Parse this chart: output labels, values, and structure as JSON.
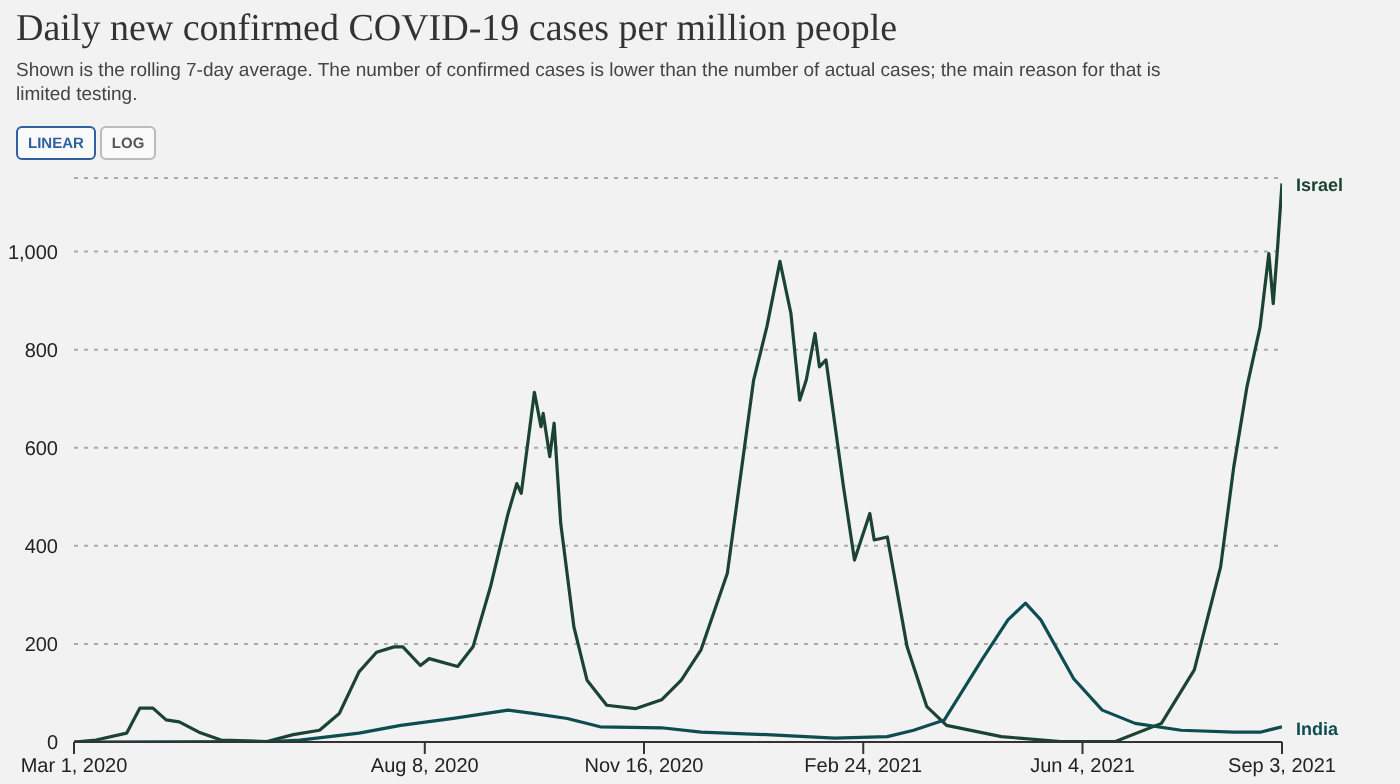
{
  "chart_data": {
    "type": "line",
    "title": "Daily new confirmed COVID-19 cases per million people",
    "subtitle": "Shown is the rolling 7-day average. The number of confirmed cases is lower than the number of actual cases; the main reason for that is limited testing.",
    "annotations": [
      "LINEAR",
      "LOG"
    ],
    "xlim": [
      "2020-03-01",
      "2021-09-03"
    ],
    "xticks": [
      {
        "value": "2020-03-01",
        "label": "Mar 1, 2020"
      },
      {
        "value": "2020-08-08",
        "label": "Aug 8, 2020"
      },
      {
        "value": "2020-11-16",
        "label": "Nov 16, 2020"
      },
      {
        "value": "2021-02-24",
        "label": "Feb 24, 2021"
      },
      {
        "value": "2021-06-04",
        "label": "Jun 4, 2021"
      },
      {
        "value": "2021-09-03",
        "label": "Sep 3, 2021"
      }
    ],
    "ylim": [
      0,
      1150
    ],
    "yticks": [
      0,
      200,
      400,
      600,
      800,
      {
        "value": 1000,
        "label": "1,000"
      }
    ],
    "grid": "y",
    "legend": false,
    "marker": "none",
    "line_style": "solid",
    "series": [
      {
        "name": "Israel",
        "color": "#1b4332",
        "x": [
          "2020-03-01",
          "2020-03-11",
          "2020-03-25",
          "2020-03-31",
          "2020-04-06",
          "2020-04-12",
          "2020-04-18",
          "2020-04-27",
          "2020-05-07",
          "2020-05-28",
          "2020-06-09",
          "2020-06-21",
          "2020-06-30",
          "2020-07-09",
          "2020-07-17",
          "2020-07-25",
          "2020-07-29",
          "2020-08-06",
          "2020-08-10",
          "2020-08-23",
          "2020-08-30",
          "2020-09-07",
          "2020-09-15",
          "2020-09-19",
          "2020-09-21",
          "2020-09-27",
          "2020-09-30",
          "2020-10-01",
          "2020-10-04",
          "2020-10-06",
          "2020-10-09",
          "2020-10-15",
          "2020-10-21",
          "2020-10-30",
          "2020-11-12",
          "2020-11-24",
          "2020-12-03",
          "2020-12-12",
          "2020-12-24",
          "2021-01-05",
          "2021-01-11",
          "2021-01-17",
          "2021-01-22",
          "2021-01-26",
          "2021-01-29",
          "2021-02-02",
          "2021-02-04",
          "2021-02-07",
          "2021-02-15",
          "2021-02-20",
          "2021-02-23",
          "2021-02-27",
          "2021-03-01",
          "2021-03-07",
          "2021-03-16",
          "2021-03-25",
          "2021-04-03",
          "2021-04-28",
          "2021-05-25",
          "2021-06-19",
          "2021-07-10",
          "2021-07-25",
          "2021-08-06",
          "2021-08-12",
          "2021-08-18",
          "2021-08-24",
          "2021-08-28",
          "2021-08-30",
          "2021-09-01",
          "2021-09-03"
        ],
        "values": [
          0,
          4,
          18,
          69,
          69,
          45,
          41,
          20,
          4,
          1,
          15,
          24,
          58,
          143,
          183,
          194,
          194,
          156,
          170,
          154,
          194,
          317,
          466,
          527,
          507,
          713,
          643,
          670,
          582,
          650,
          446,
          235,
          126,
          75,
          68,
          86,
          126,
          188,
          344,
          738,
          846,
          980,
          874,
          697,
          738,
          833,
          765,
          779,
          520,
          371,
          412,
          466,
          412,
          418,
          194,
          72,
          34,
          11,
          1,
          1,
          38,
          147,
          357,
          561,
          724,
          846,
          996,
          894,
          1009,
          1139
        ]
      },
      {
        "name": "India",
        "color": "#0e4d4f",
        "x": [
          "2020-03-01",
          "2020-05-30",
          "2020-06-12",
          "2020-07-09",
          "2020-07-28",
          "2020-08-21",
          "2020-09-15",
          "2020-09-27",
          "2020-10-12",
          "2020-10-27",
          "2020-11-24",
          "2020-12-12",
          "2021-01-11",
          "2021-02-11",
          "2021-03-07",
          "2021-03-19",
          "2021-04-02",
          "2021-04-19",
          "2021-05-01",
          "2021-05-09",
          "2021-05-16",
          "2021-05-31",
          "2021-06-13",
          "2021-06-28",
          "2021-07-19",
          "2021-08-12",
          "2021-08-24",
          "2021-09-03"
        ],
        "values": [
          0,
          1,
          4,
          18,
          34,
          48,
          65,
          58,
          48,
          31,
          29,
          20,
          15,
          8,
          11,
          24,
          45,
          167,
          249,
          283,
          249,
          129,
          65,
          38,
          24,
          20,
          20,
          31
        ]
      }
    ]
  }
}
